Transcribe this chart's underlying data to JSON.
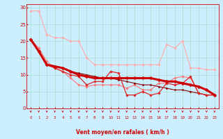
{
  "background_color": "#cceeff",
  "grid_color": "#aaddcc",
  "xlabel": "Vent moyen/en rafales ( km/h )",
  "xlabel_color": "#cc0000",
  "tick_color": "#cc0000",
  "xlim": [
    -0.5,
    23.5
  ],
  "ylim": [
    0,
    31
  ],
  "yticks": [
    0,
    5,
    10,
    15,
    20,
    25,
    30
  ],
  "xticks": [
    0,
    1,
    2,
    3,
    4,
    5,
    6,
    7,
    8,
    9,
    10,
    11,
    12,
    13,
    14,
    15,
    16,
    17,
    18,
    19,
    20,
    21,
    22,
    23
  ],
  "series": [
    {
      "x": [
        0,
        1,
        2,
        3,
        4,
        5,
        6,
        7,
        8,
        9,
        10,
        11,
        12,
        13,
        14,
        15,
        16,
        17,
        18,
        19,
        20,
        21,
        22,
        23
      ],
      "y": [
        29,
        29,
        22,
        21,
        21,
        20,
        20,
        15,
        13,
        13,
        13,
        13,
        13,
        13,
        13,
        13,
        13,
        19,
        18,
        20,
        12,
        12,
        11.5,
        11.5
      ],
      "color": "#ffaaaa",
      "lw": 0.8,
      "marker": "D",
      "ms": 1.8,
      "zorder": 2
    },
    {
      "x": [
        0,
        1,
        2,
        3,
        4,
        5,
        6,
        7,
        8,
        9,
        10,
        11,
        12,
        13,
        14,
        15,
        16,
        17,
        18,
        19,
        20,
        21,
        22,
        23
      ],
      "y": [
        20.5,
        18,
        14,
        12,
        11,
        9,
        7,
        6.5,
        7,
        7,
        7,
        7,
        6,
        7,
        5.5,
        5.5,
        7.5,
        7.5,
        9,
        9.5,
        9,
        4.5,
        4,
        4
      ],
      "color": "#ff7777",
      "lw": 0.8,
      "marker": "D",
      "ms": 1.8,
      "zorder": 3
    },
    {
      "x": [
        0,
        1,
        2,
        3,
        4,
        5,
        6,
        7,
        8,
        9,
        10,
        11,
        12,
        13,
        14,
        15,
        16,
        17,
        18,
        19,
        20,
        21,
        22,
        23
      ],
      "y": [
        20.5,
        17,
        13,
        12,
        11,
        10,
        9.5,
        7,
        8,
        8,
        11,
        10.5,
        4,
        4,
        5,
        4,
        4.5,
        7.5,
        7,
        7.5,
        9.5,
        4.5,
        4,
        4
      ],
      "color": "#dd2222",
      "lw": 0.9,
      "marker": "D",
      "ms": 1.8,
      "zorder": 4
    },
    {
      "x": [
        0,
        1,
        2,
        3,
        4,
        5,
        6,
        7,
        8,
        9,
        10,
        11,
        12,
        13,
        14,
        15,
        16,
        17,
        18,
        19,
        20,
        21,
        22,
        23
      ],
      "y": [
        20.5,
        17,
        13,
        12.5,
        12,
        11,
        10,
        9.5,
        9,
        9,
        9,
        9,
        9,
        9,
        9,
        9,
        8.5,
        8,
        8,
        7.5,
        7,
        6.5,
        5.5,
        4
      ],
      "color": "#cc0000",
      "lw": 2.2,
      "marker": "D",
      "ms": 2.5,
      "zorder": 5
    },
    {
      "x": [
        0,
        1,
        2,
        3,
        4,
        5,
        6,
        7,
        8,
        9,
        10,
        11,
        12,
        13,
        14,
        15,
        16,
        17,
        18,
        19,
        20,
        21,
        22,
        23
      ],
      "y": [
        20.5,
        17,
        13,
        12.5,
        12,
        11,
        10.5,
        10,
        9.5,
        9,
        9,
        8.5,
        8,
        7.5,
        7,
        7,
        6.5,
        6,
        5.5,
        5.5,
        5,
        4.5,
        4,
        4
      ],
      "color": "#880000",
      "lw": 0.8,
      "marker": "D",
      "ms": 1.5,
      "zorder": 3
    }
  ],
  "arrow_color": "#cc0000"
}
